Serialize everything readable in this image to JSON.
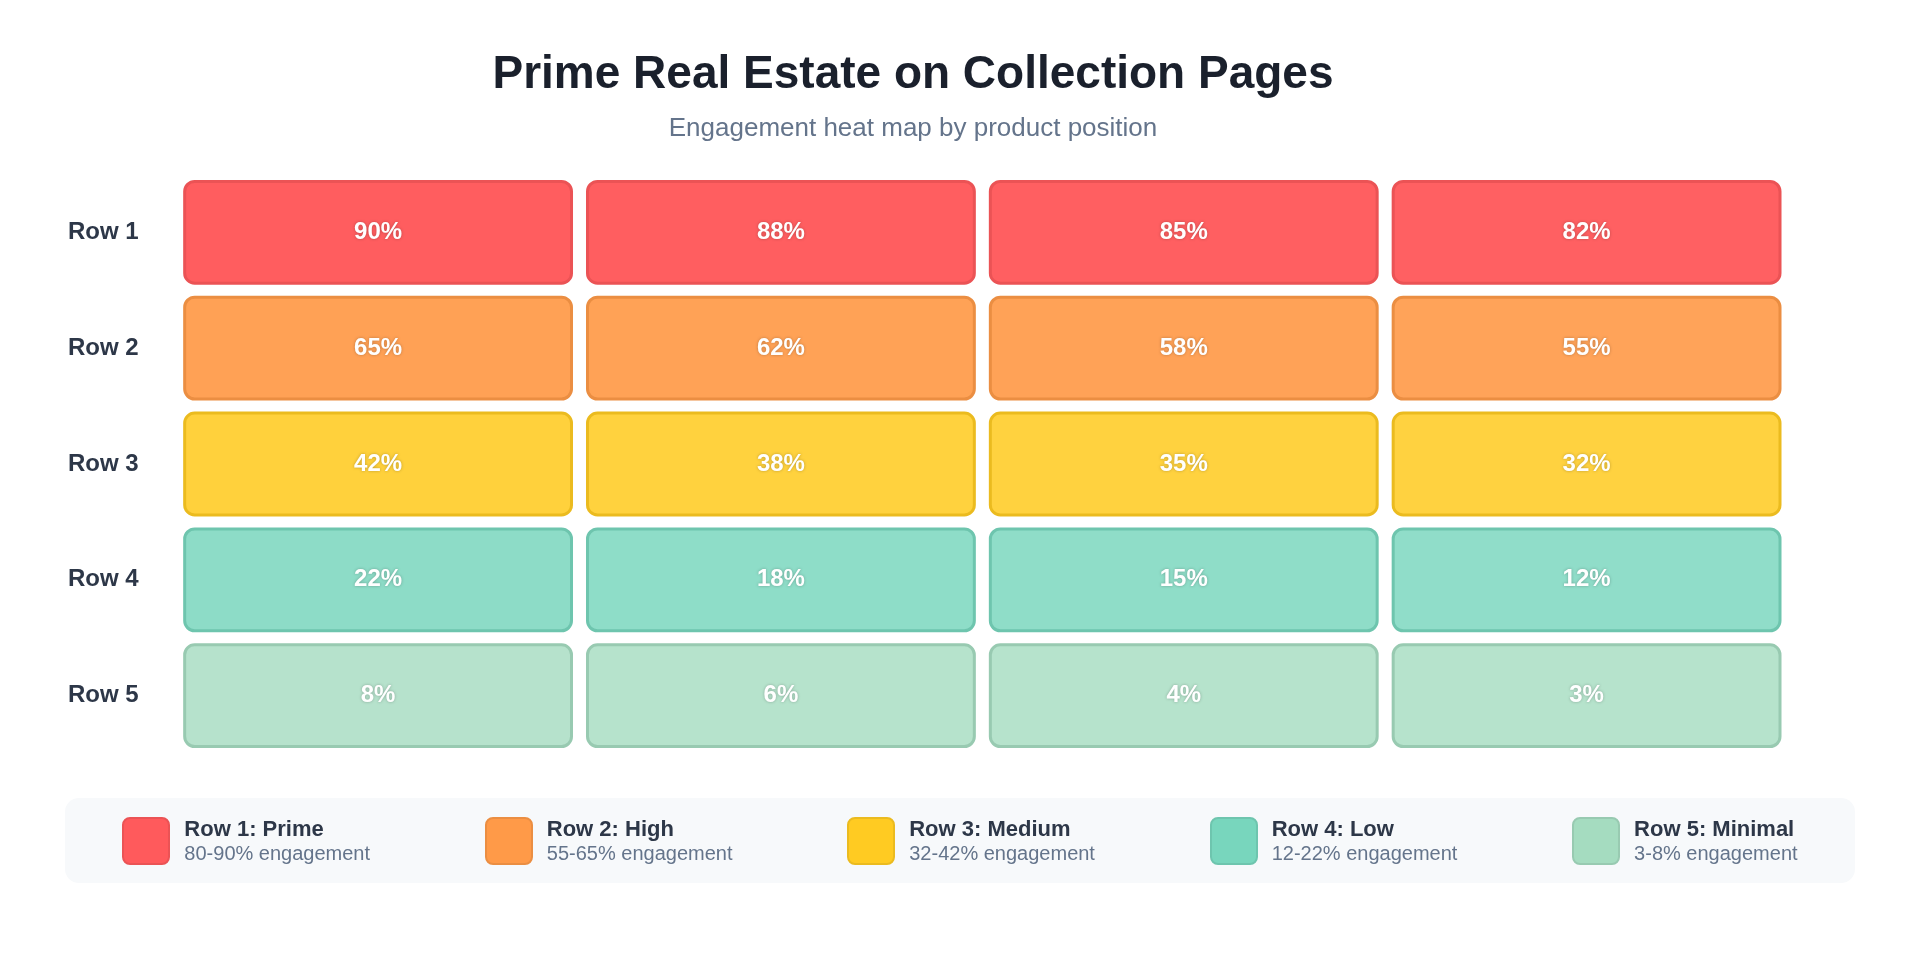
{
  "chart_data": {
    "type": "heatmap",
    "title": "Prime Real Estate on Collection Pages",
    "subtitle": "Engagement heat map by product position",
    "categories": [
      null,
      null,
      null,
      null
    ],
    "y_categories": [
      "Row 1",
      "Row 2",
      "Row 3",
      "Row 4",
      "Row 5"
    ],
    "cells": [
      [
        90,
        88,
        85,
        82
      ],
      [
        65,
        62,
        58,
        55
      ],
      [
        42,
        38,
        35,
        32
      ],
      [
        22,
        18,
        15,
        12
      ],
      [
        8,
        6,
        4,
        3
      ]
    ],
    "cell_labels": [
      [
        "90%",
        "88%",
        "85%",
        "82%"
      ],
      [
        "65%",
        "62%",
        "58%",
        "55%"
      ],
      [
        "42%",
        "38%",
        "35%",
        "32%"
      ],
      [
        "22%",
        "18%",
        "15%",
        "12%"
      ],
      [
        "8%",
        "6%",
        "4%",
        "3%"
      ]
    ],
    "colors": [
      "#ff5a5c",
      "#ff9a48",
      "#ffcb22",
      "#78d6bd",
      "#a5dcc0"
    ],
    "annotations": [
      "Row 1: Prime",
      "80-90% engagement",
      "Row 2: High",
      "55-65% engagement",
      "Row 3: Medium",
      "32-42% engagement",
      "Row 4: Low",
      "12-22% engagement",
      "Row 5: Minimal",
      "3-8% engagement"
    ]
  }
}
